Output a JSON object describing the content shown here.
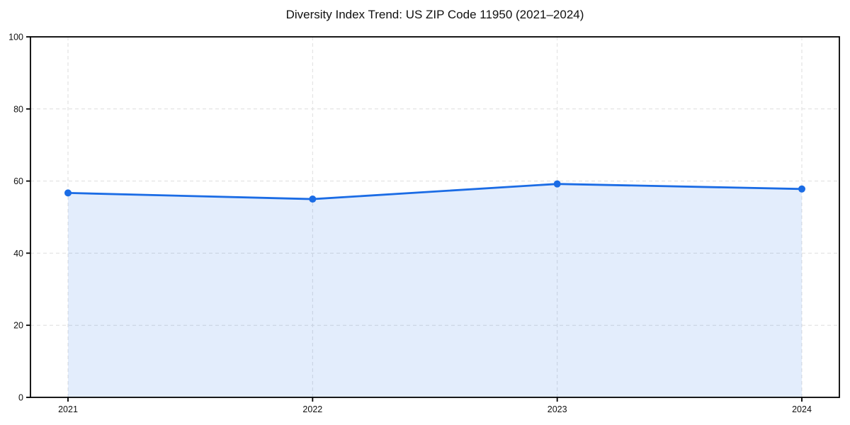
{
  "chart_data": {
    "type": "area",
    "title": "Diversity Index Trend: US ZIP Code 11950 (2021–2024)",
    "categories": [
      "2021",
      "2022",
      "2023",
      "2024"
    ],
    "values": [
      56.7,
      55.0,
      59.2,
      57.8
    ],
    "series_name": "Diversity Index",
    "xlabel": "",
    "ylabel": "",
    "ylim": [
      0,
      100
    ],
    "yticks": [
      0,
      20,
      40,
      60,
      80,
      100
    ],
    "grid": true,
    "grid_style": "dashed",
    "legend": "none",
    "marker": "circle",
    "colors": {
      "line": "#1b6ce5",
      "marker": "#1b6ce5",
      "fill": "rgba(27,108,229,0.12)",
      "grid": "#dedede",
      "axis": "#000000",
      "tick_label": "#111111",
      "title": "#111111",
      "background": "#ffffff"
    }
  }
}
